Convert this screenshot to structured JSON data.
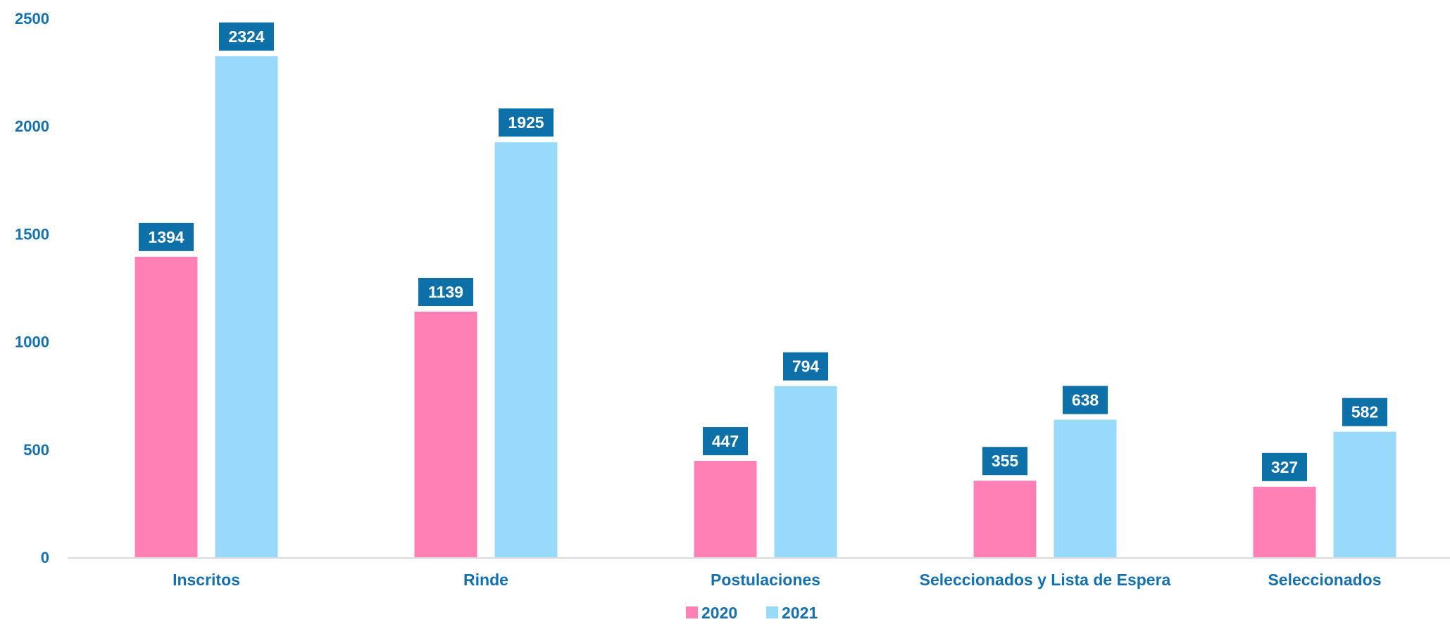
{
  "chart_data": {
    "type": "bar",
    "categories": [
      "Inscritos",
      "Rinde",
      "Postulaciones",
      "Seleccionados y Lista de Espera",
      "Seleccionados"
    ],
    "series": [
      {
        "name": "2020",
        "values": [
          1394,
          1139,
          447,
          355,
          327
        ],
        "color": "#FF80B4"
      },
      {
        "name": "2021",
        "values": [
          2324,
          1925,
          794,
          638,
          582
        ],
        "color": "#99D9F9"
      }
    ],
    "title": "",
    "xlabel": "",
    "ylabel": "",
    "ylim": [
      0,
      2500
    ],
    "yticks": [
      0,
      500,
      1000,
      1500,
      2000,
      2500
    ],
    "grid": false,
    "legend_position": "bottom-center",
    "data_labels": true
  },
  "colors": {
    "axis_text": "#1470AE",
    "data_label_bg": "#0E70A8",
    "axis_line": "#D9D9D9"
  }
}
